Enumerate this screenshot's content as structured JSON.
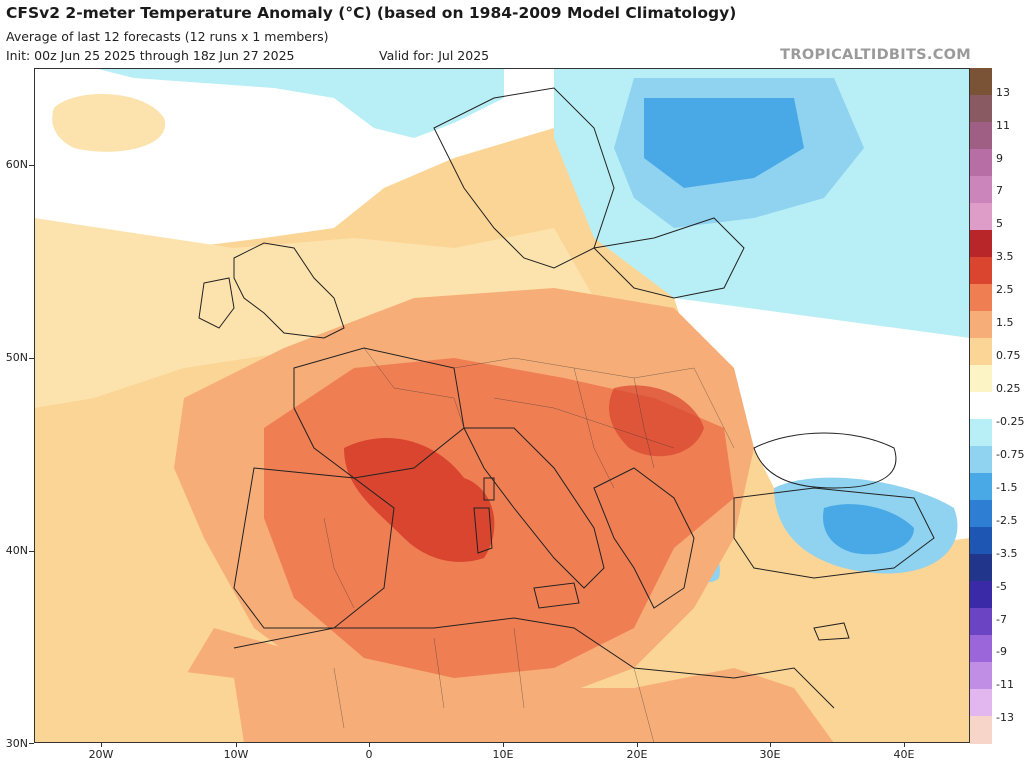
{
  "header": {
    "title": "CFSv2 2-meter Temperature Anomaly (°C) (based on 1984-2009 Model Climatology)",
    "subtitle": "Average of last 12 forecasts (12 runs x 1 members)",
    "init": "Init: 00z Jun 25 2025 through 18z Jun 27 2025",
    "valid": "Valid for: Jul 2025",
    "credit": "TROPICALTIDBITS.COM"
  },
  "map": {
    "region": "Europe, North Africa and the Middle East",
    "lat_labels": [
      "60N",
      "50N",
      "40N",
      "30N"
    ],
    "lon_labels": [
      "20W",
      "10W",
      "0",
      "10E",
      "20E",
      "30E",
      "40E"
    ],
    "anomaly_zones": [
      {
        "name": "western-mediterranean-max",
        "level": "2.5",
        "color": "#d9452f"
      },
      {
        "name": "iberia-france-italy-warm",
        "level": "1.5",
        "color": "#ef7e53"
      },
      {
        "name": "north-africa-central-europe-warm",
        "level": "0.75",
        "color": "#f7ad78"
      },
      {
        "name": "atlantic-warm",
        "level": "0.25",
        "color": "#fce3ad"
      },
      {
        "name": "scandinavia-russia-cool",
        "level": "-1.5",
        "color": "#49a9e6"
      },
      {
        "name": "turkey-cool",
        "level": "-0.75",
        "color": "#8fd3f0"
      },
      {
        "name": "north-atlantic-cool",
        "level": "-0.25",
        "color": "#b8eef5"
      }
    ]
  },
  "colorbar": {
    "labels": [
      "13",
      "11",
      "9",
      "7",
      "5",
      "3.5",
      "2.5",
      "1.5",
      "0.75",
      "0.25",
      "-0.25",
      "-0.75",
      "-1.5",
      "-2.5",
      "-3.5",
      "-5",
      "-7",
      "-9",
      "-11",
      "-13"
    ],
    "colors": [
      "#7a5235",
      "#8a5a62",
      "#9f5f85",
      "#b76ea5",
      "#cc85bb",
      "#de9dc9",
      "#b9262a",
      "#d9452f",
      "#ef7e53",
      "#f7ad78",
      "#fbd595",
      "#fdf4c6",
      "#ffffff",
      "#b8eef5",
      "#8fd3f0",
      "#49a9e6",
      "#2e7fd3",
      "#1e56b4",
      "#21358a",
      "#3b2aa8",
      "#6a44c2",
      "#9b66d9",
      "#c18ee6",
      "#e2b6ef",
      "#f7d6c9"
    ]
  }
}
